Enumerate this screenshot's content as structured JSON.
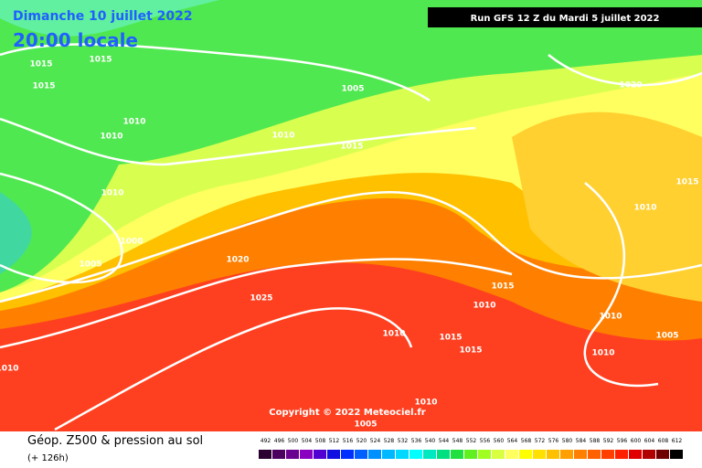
{
  "header": {
    "date": "Dimanche 10 juillet 2022",
    "time": "20:00 locale",
    "run": "Run GFS 12 Z du Mardi 5 juillet 2022"
  },
  "isobar_labels": [
    1015,
    1015,
    1015,
    1005,
    1020,
    1010,
    1010,
    1010,
    1015,
    1010,
    1015,
    1010,
    1000,
    1005,
    1020,
    1025,
    1015,
    1010,
    1010,
    1010,
    1015,
    1015,
    1005,
    1010,
    1010,
    1005,
    1010
  ],
  "copyright": "Copyright © 2022 Meteociel.fr",
  "legend": {
    "title": "Géop. Z500 & pression au sol",
    "subtitle": "(+ 126h)",
    "scale": [
      492,
      496,
      500,
      504,
      508,
      512,
      516,
      520,
      524,
      528,
      532,
      536,
      540,
      544,
      548,
      552,
      556,
      560,
      564,
      568,
      572,
      576,
      580,
      584,
      588,
      592,
      596,
      600,
      604,
      608,
      612
    ],
    "colors": [
      "#2a0030",
      "#4b0060",
      "#6a0090",
      "#8a00c0",
      "#5000d0",
      "#1010e0",
      "#0030ff",
      "#0060ff",
      "#0090ff",
      "#00b8ff",
      "#00d8ff",
      "#00ffff",
      "#00e8c0",
      "#00e080",
      "#20e040",
      "#60f020",
      "#a0ff20",
      "#d8ff40",
      "#ffff60",
      "#ffff00",
      "#ffe000",
      "#ffc000",
      "#ffa000",
      "#ff8000",
      "#ff6000",
      "#ff4000",
      "#ff2000",
      "#e00000",
      "#b00000",
      "#700000",
      "#000000"
    ]
  }
}
